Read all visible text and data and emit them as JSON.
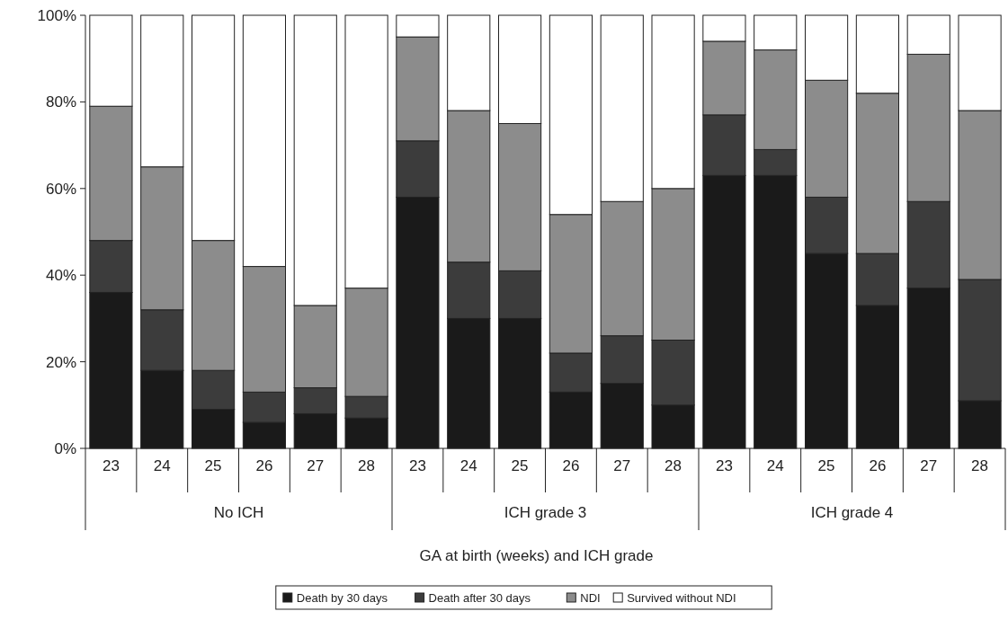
{
  "chart_data": {
    "type": "bar",
    "stacked": true,
    "xlabel": "GA at birth (weeks) and ICH grade",
    "categories": [
      "23",
      "24",
      "25",
      "26",
      "27",
      "28",
      "23",
      "24",
      "25",
      "26",
      "27",
      "28",
      "23",
      "24",
      "25",
      "26",
      "27",
      "28"
    ],
    "annotations": [
      "No ICH",
      "ICH grade 3",
      "ICH grade 4"
    ],
    "series": [
      {
        "name": "Death by 30 days",
        "color": "#1a1a1a",
        "values": [
          36,
          18,
          9,
          6,
          8,
          7,
          58,
          30,
          30,
          13,
          15,
          10,
          63,
          63,
          45,
          33,
          37,
          11
        ]
      },
      {
        "name": "Death after 30 days",
        "color": "#3c3c3c",
        "values": [
          12,
          14,
          9,
          7,
          6,
          5,
          13,
          13,
          11,
          9,
          11,
          15,
          14,
          6,
          13,
          12,
          20,
          28
        ]
      },
      {
        "name": "NDI",
        "color": "#8c8c8c",
        "values": [
          31,
          33,
          30,
          29,
          19,
          25,
          24,
          35,
          34,
          32,
          31,
          35,
          17,
          23,
          27,
          37,
          34,
          39
        ]
      },
      {
        "name": "Survived without NDI",
        "color": "#ffffff",
        "values": [
          21,
          35,
          52,
          58,
          67,
          63,
          5,
          22,
          25,
          46,
          43,
          40,
          6,
          8,
          15,
          18,
          9,
          22
        ]
      }
    ],
    "ylim": [
      0,
      100
    ],
    "yticks": [
      {
        "value": 0,
        "label": "0%"
      },
      {
        "value": 20,
        "label": "20%"
      },
      {
        "value": 40,
        "label": "40%"
      },
      {
        "value": 60,
        "label": "60%"
      },
      {
        "value": 80,
        "label": "80%"
      },
      {
        "value": 100,
        "label": "100%"
      }
    ],
    "legend": "bottom"
  }
}
